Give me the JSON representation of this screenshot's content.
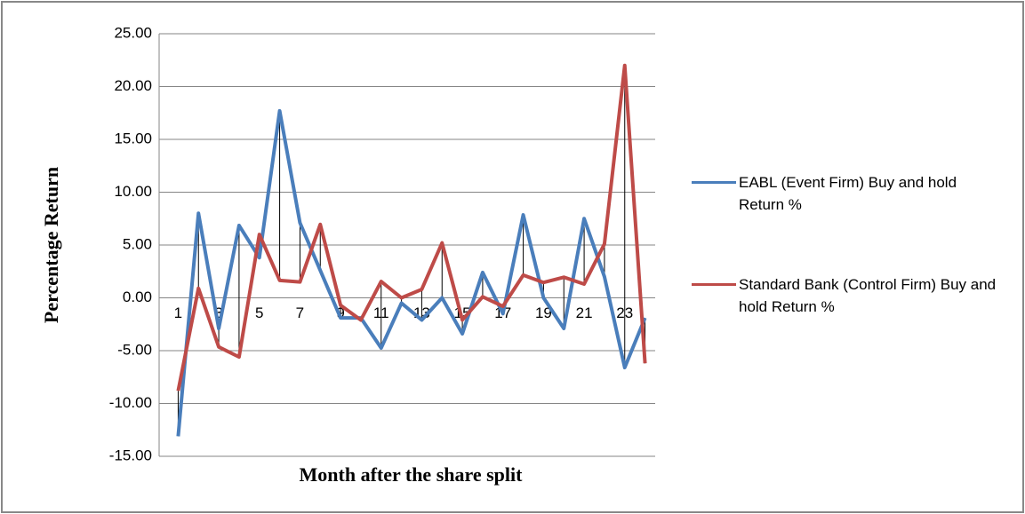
{
  "chart_data": {
    "type": "line",
    "x_label": "Month after the share split",
    "y_label": "Percentage Return",
    "categories": [
      1,
      null,
      3,
      null,
      5,
      null,
      7,
      null,
      9,
      null,
      11,
      null,
      13,
      null,
      15,
      null,
      17,
      null,
      19,
      null,
      21,
      null,
      23,
      null
    ],
    "series": [
      {
        "name": "EABL (Event Firm)  Buy and hold Return %",
        "color": "#4a7ebb",
        "values": [
          -13.1,
          8.0,
          -2.9,
          6.85,
          3.8,
          17.7,
          7.1,
          2.6,
          -1.9,
          -1.9,
          -4.75,
          -0.5,
          -2.1,
          0.0,
          -3.4,
          2.4,
          -1.5,
          7.85,
          0.0,
          -2.9,
          7.5,
          2.0,
          -6.6,
          -1.9
        ]
      },
      {
        "name": "Standard Bank  (Control Firm)  Buy and hold Return %",
        "color": "#be4b48",
        "values": [
          -8.8,
          0.9,
          -4.65,
          -5.6,
          6.0,
          1.65,
          1.5,
          6.95,
          -0.7,
          -2.1,
          1.55,
          0.0,
          0.8,
          5.2,
          -2.1,
          0.1,
          -0.8,
          2.15,
          1.45,
          1.95,
          1.3,
          5.1,
          22.0,
          -6.2
        ]
      }
    ],
    "ylim": [
      -15,
      25
    ],
    "yticks": [
      {
        "value": -15,
        "label": "-15.00"
      },
      {
        "value": -10,
        "label": "-10.00"
      },
      {
        "value": -5,
        "label": "-5.00"
      },
      {
        "value": 0,
        "label": "0.00"
      },
      {
        "value": 5,
        "label": "5.00"
      },
      {
        "value": 10,
        "label": "10.00"
      },
      {
        "value": 15,
        "label": "15.00"
      },
      {
        "value": 20,
        "label": "20.00"
      },
      {
        "value": 25,
        "label": "25.00"
      }
    ],
    "grid": true,
    "drop_lines": true,
    "legend": "right"
  }
}
